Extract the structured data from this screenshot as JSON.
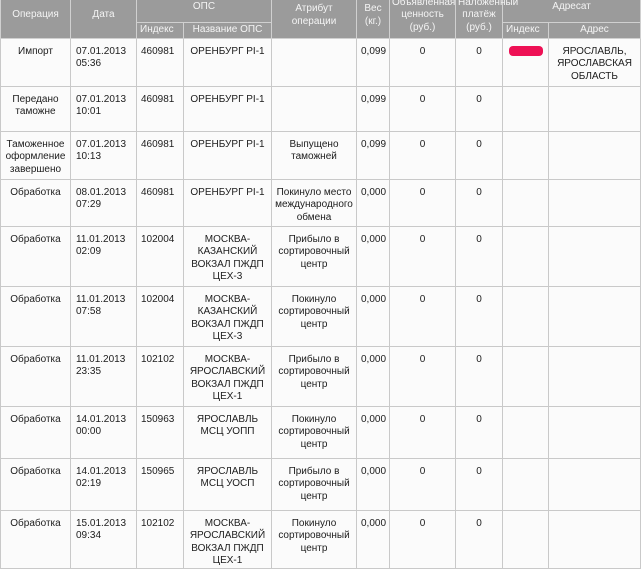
{
  "header": {
    "operation": "Операция",
    "date": "Дата",
    "ops_group": "ОПС",
    "ops_index": "Индекс",
    "ops_name": "Название ОПС",
    "attribute": "Атрибут операции",
    "weight": "Вес (кг.)",
    "declared_value": "Объявленная ценность (руб.)",
    "cod": "Наложенный платёж (руб.)",
    "dest_group": "Адресат",
    "dest_index": "Индекс",
    "dest_address": "Адрес"
  },
  "rows": [
    {
      "operation": "Импорт",
      "date": "07.01.2013 05:36",
      "index": "460981",
      "ops": "ОРЕНБУРГ PI-1",
      "attribute": "",
      "weight": "0,099",
      "value": "0",
      "cod": "0",
      "dest_index": "",
      "dest_address": "ЯРОСЛАВЛЬ, ЯРОСЛАВСКАЯ ОБЛАСТЬ"
    },
    {
      "operation": "Передано таможне",
      "date": "07.01.2013 10:01",
      "index": "460981",
      "ops": "ОРЕНБУРГ PI-1",
      "attribute": "",
      "weight": "0,099",
      "value": "0",
      "cod": "0",
      "dest_index": "",
      "dest_address": ""
    },
    {
      "operation": "Таможенное оформление завершено",
      "date": "07.01.2013 10:13",
      "index": "460981",
      "ops": "ОРЕНБУРГ PI-1",
      "attribute": "Выпущено таможней",
      "weight": "0,099",
      "value": "0",
      "cod": "0",
      "dest_index": "",
      "dest_address": ""
    },
    {
      "operation": "Обработка",
      "date": "08.01.2013 07:29",
      "index": "460981",
      "ops": "ОРЕНБУРГ PI-1",
      "attribute": "Покинуло место международного обмена",
      "weight": "0,000",
      "value": "0",
      "cod": "0",
      "dest_index": "",
      "dest_address": ""
    },
    {
      "operation": "Обработка",
      "date": "11.01.2013 02:09",
      "index": "102004",
      "ops": "МОСКВА-КАЗАНСКИЙ ВОКЗАЛ ПЖДП ЦЕХ-3",
      "attribute": "Прибыло в сортировочный центр",
      "weight": "0,000",
      "value": "0",
      "cod": "0",
      "dest_index": "",
      "dest_address": ""
    },
    {
      "operation": "Обработка",
      "date": "11.01.2013 07:58",
      "index": "102004",
      "ops": "МОСКВА-КАЗАНСКИЙ ВОКЗАЛ ПЖДП ЦЕХ-3",
      "attribute": "Покинуло сортировочный центр",
      "weight": "0,000",
      "value": "0",
      "cod": "0",
      "dest_index": "",
      "dest_address": ""
    },
    {
      "operation": "Обработка",
      "date": "11.01.2013 23:35",
      "index": "102102",
      "ops": "МОСКВА-ЯРОСЛАВСКИЙ ВОКЗАЛ ПЖДП ЦЕХ-1",
      "attribute": "Прибыло в сортировочный центр",
      "weight": "0,000",
      "value": "0",
      "cod": "0",
      "dest_index": "",
      "dest_address": ""
    },
    {
      "operation": "Обработка",
      "date": "14.01.2013 00:00",
      "index": "150963",
      "ops": "ЯРОСЛАВЛЬ МСЦ УОПП",
      "attribute": "Покинуло сортировочный центр",
      "weight": "0,000",
      "value": "0",
      "cod": "0",
      "dest_index": "",
      "dest_address": ""
    },
    {
      "operation": "Обработка",
      "date": "14.01.2013 02:19",
      "index": "150965",
      "ops": "ЯРОСЛАВЛЬ МСЦ УОСП",
      "attribute": "Прибыло в сортировочный центр",
      "weight": "0,000",
      "value": "0",
      "cod": "0",
      "dest_index": "",
      "dest_address": ""
    },
    {
      "operation": "Обработка",
      "date": "15.01.2013 09:34",
      "index": "102102",
      "ops": "МОСКВА-ЯРОСЛАВСКИЙ ВОКЗАЛ ПЖДП ЦЕХ-1",
      "attribute": "Покинуло сортировочный центр",
      "weight": "0,000",
      "value": "0",
      "cod": "0",
      "dest_index": "",
      "dest_address": ""
    }
  ],
  "redaction_color": "#ee1155"
}
